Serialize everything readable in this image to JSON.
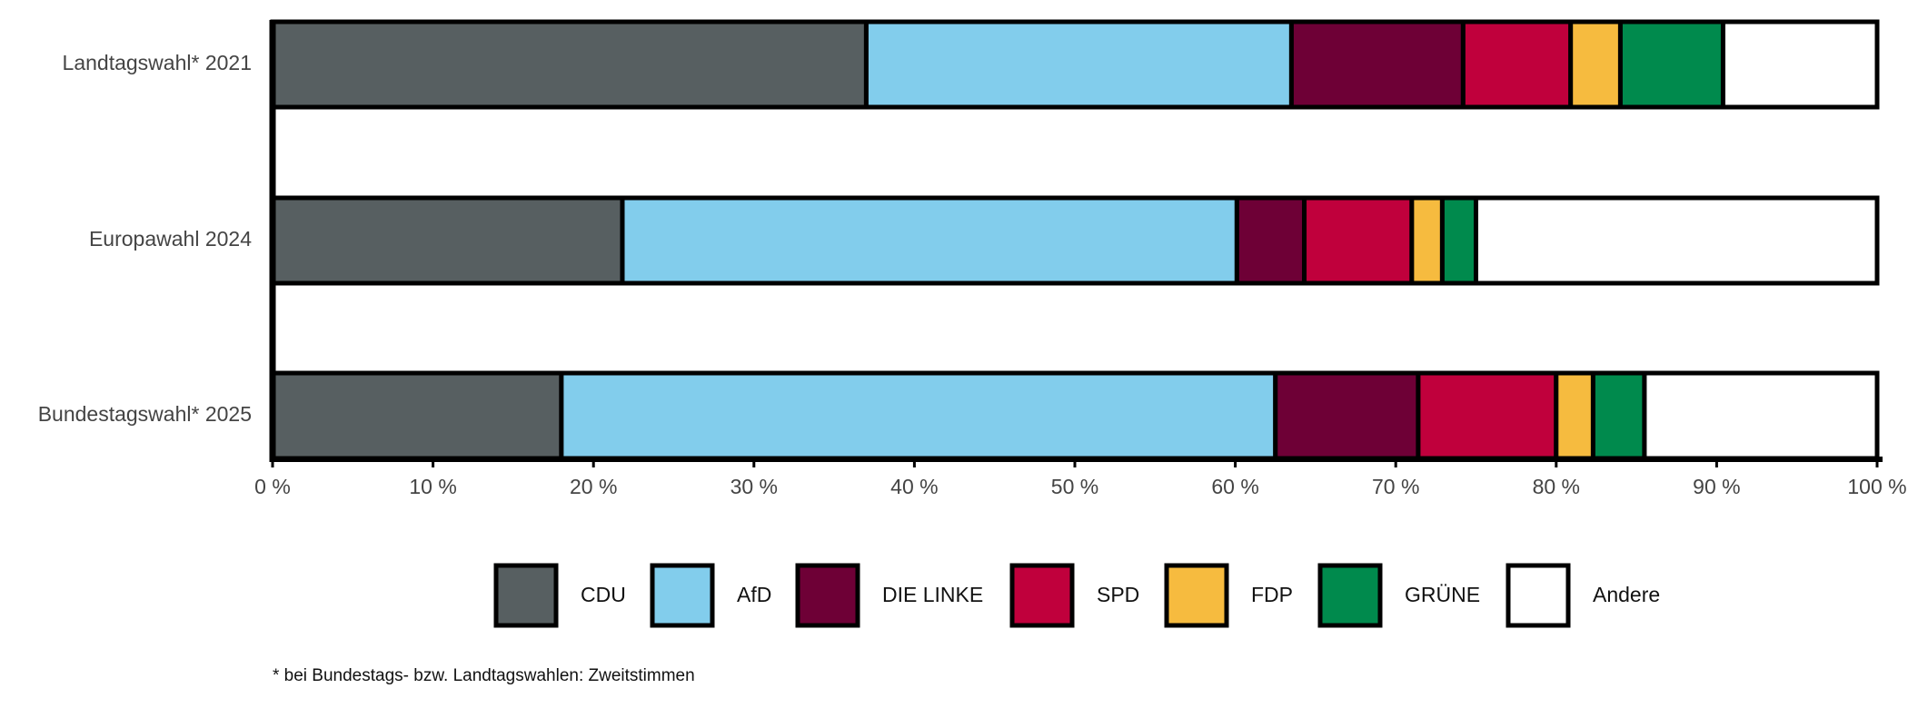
{
  "chart_data": {
    "type": "stacked-bar-horizontal",
    "categories": [
      "Landtagswahl* 2021",
      "Europawahl 2024",
      "Bundestagswahl* 2025"
    ],
    "series": [
      {
        "name": "CDU",
        "color": "#575f61",
        "values": [
          37.0,
          21.8,
          18.0
        ]
      },
      {
        "name": "AfD",
        "color": "#82cdec",
        "values": [
          26.5,
          38.3,
          44.5
        ]
      },
      {
        "name": "DIE LINKE",
        "color": "#6e0036",
        "values": [
          10.7,
          4.2,
          8.9
        ]
      },
      {
        "name": "SPD",
        "color": "#c0003c",
        "values": [
          6.7,
          6.7,
          8.6
        ]
      },
      {
        "name": "FDP",
        "color": "#f6bb3f",
        "values": [
          3.1,
          1.9,
          2.3
        ]
      },
      {
        "name": "GRÜNE",
        "color": "#008a4d",
        "values": [
          6.4,
          2.1,
          3.2
        ]
      },
      {
        "name": "Andere",
        "color": "#ffffff",
        "values": [
          9.6,
          25.0,
          14.5
        ]
      }
    ],
    "xlim": [
      0,
      100
    ],
    "xticks": [
      {
        "value": 0,
        "label": "0 %"
      },
      {
        "value": 10,
        "label": "10 %"
      },
      {
        "value": 20,
        "label": "20 %"
      },
      {
        "value": 30,
        "label": "30 %"
      },
      {
        "value": 40,
        "label": "40 %"
      },
      {
        "value": 50,
        "label": "50 %"
      },
      {
        "value": 60,
        "label": "60 %"
      },
      {
        "value": 70,
        "label": "70 %"
      },
      {
        "value": 80,
        "label": "80 %"
      },
      {
        "value": 90,
        "label": "90 %"
      },
      {
        "value": 100,
        "label": "100 %"
      }
    ],
    "legend": "bottom",
    "footnote": "* bei Bundestags- bzw. Landtagswahlen: Zweitstimmen"
  }
}
